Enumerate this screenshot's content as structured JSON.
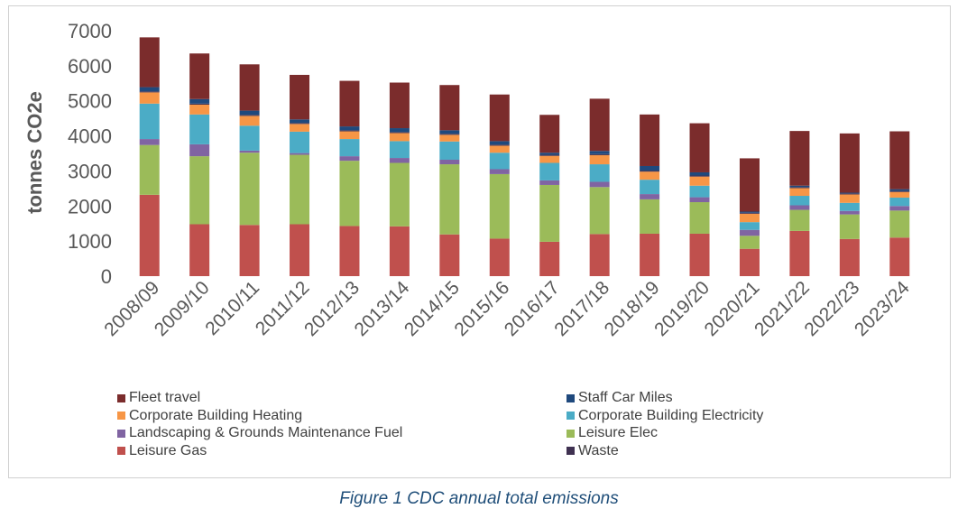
{
  "chart_data": {
    "type": "bar",
    "stacked": true,
    "ylabel": "tonnes CO2e",
    "ylim": [
      0,
      7000
    ],
    "yticks": [
      0,
      1000,
      2000,
      3000,
      4000,
      5000,
      6000,
      7000
    ],
    "grid": false,
    "legend_position": "bottom",
    "categories": [
      "2008/09",
      "2009/10",
      "2010/11",
      "2011/12",
      "2012/13",
      "2013/14",
      "2014/15",
      "2015/16",
      "2016/17",
      "2017/18",
      "2018/19",
      "2019/20",
      "2020/21",
      "2021/22",
      "2022/23",
      "2023/24"
    ],
    "series": [
      {
        "name": "Leisure Gas",
        "color": "#c0504d",
        "values": [
          2320,
          1480,
          1460,
          1480,
          1430,
          1420,
          1190,
          1070,
          980,
          1200,
          1210,
          1210,
          780,
          1290,
          1060,
          1100
        ]
      },
      {
        "name": "Leisure Elec",
        "color": "#9bbb59",
        "values": [
          1420,
          1940,
          2060,
          1980,
          1860,
          1810,
          2000,
          1840,
          1620,
          1340,
          980,
          900,
          370,
          600,
          700,
          770
        ]
      },
      {
        "name": "Landscaping & Grounds Maintenance Fuel",
        "color": "#8064a2",
        "values": [
          170,
          340,
          60,
          50,
          130,
          140,
          130,
          140,
          130,
          150,
          150,
          140,
          170,
          130,
          100,
          130
        ]
      },
      {
        "name": "Corporate Building Electricity",
        "color": "#4bacc6",
        "values": [
          1010,
          850,
          710,
          610,
          490,
          480,
          520,
          470,
          500,
          500,
          410,
          330,
          220,
          270,
          230,
          240
        ]
      },
      {
        "name": "Corporate Building Heating",
        "color": "#f79646",
        "values": [
          320,
          280,
          280,
          220,
          220,
          230,
          190,
          200,
          200,
          260,
          230,
          260,
          240,
          220,
          240,
          160
        ]
      },
      {
        "name": "Waste",
        "color": "#3f3151",
        "values": [
          30,
          30,
          30,
          30,
          30,
          30,
          30,
          30,
          30,
          30,
          30,
          30,
          30,
          30,
          30,
          30
        ]
      },
      {
        "name": "Staff Car Miles",
        "color": "#1f497d",
        "values": [
          120,
          130,
          120,
          100,
          110,
          110,
          100,
          100,
          60,
          90,
          130,
          90,
          30,
          40,
          20,
          50
        ]
      },
      {
        "name": "Fleet travel",
        "color": "#7b2c2c",
        "values": [
          1420,
          1300,
          1320,
          1270,
          1300,
          1300,
          1290,
          1330,
          1080,
          1490,
          1470,
          1400,
          1520,
          1560,
          1690,
          1650
        ]
      }
    ]
  },
  "legend": {
    "items": [
      {
        "label": "Fleet travel",
        "color": "#7b2c2c"
      },
      {
        "label": "Staff Car Miles",
        "color": "#1f497d"
      },
      {
        "label": "Corporate Building Heating",
        "color": "#f79646"
      },
      {
        "label": "Corporate Building Electricity",
        "color": "#4bacc6"
      },
      {
        "label": "Landscaping & Grounds Maintenance Fuel",
        "color": "#8064a2"
      },
      {
        "label": "Leisure Elec",
        "color": "#9bbb59"
      },
      {
        "label": "Leisure Gas",
        "color": "#c0504d"
      },
      {
        "label": "Waste",
        "color": "#3f3151"
      }
    ]
  },
  "caption": "Figure 1 CDC annual total emissions"
}
